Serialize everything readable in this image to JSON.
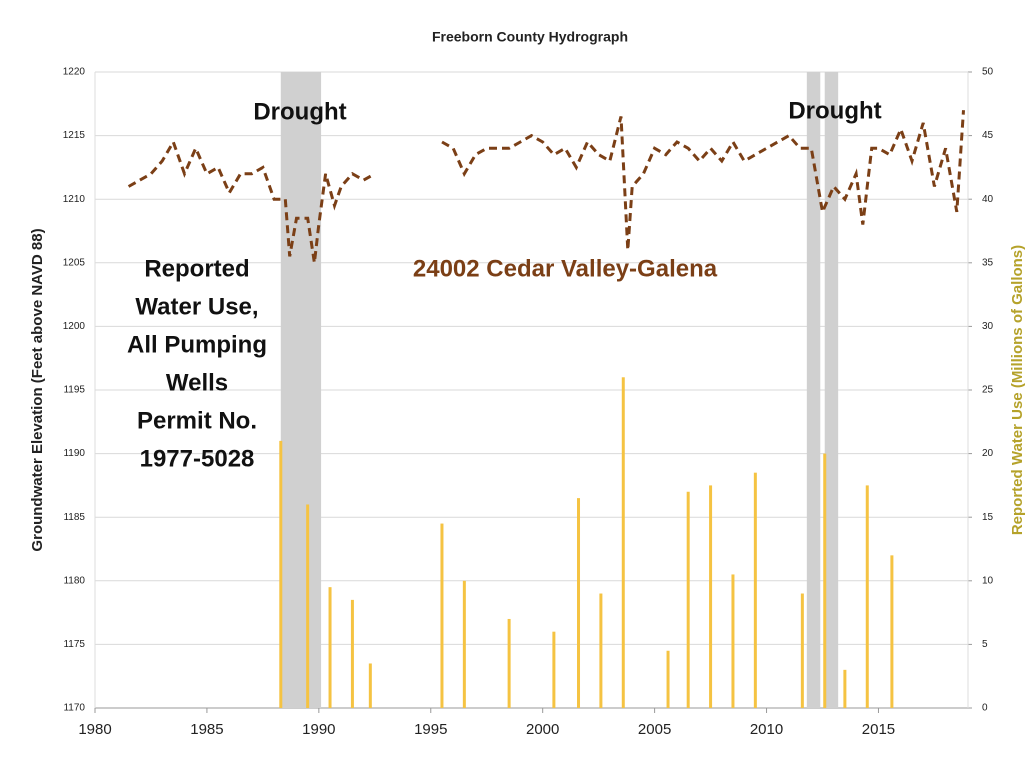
{
  "chart_data": {
    "type": "combo",
    "title": "Freeborn County Hydrograph",
    "ylabel": "Groundwater Elevation (Feet above NAVD 88)",
    "y2label": "Reported Water Use (Millions of Gallons)",
    "xlim": [
      1980,
      2019
    ],
    "xticks": [
      1980,
      1985,
      1990,
      1995,
      2000,
      2005,
      2010,
      2015
    ],
    "ylim": [
      1170,
      1220
    ],
    "yticks": [
      1170,
      1175,
      1180,
      1185,
      1190,
      1195,
      1200,
      1205,
      1210,
      1215,
      1220
    ],
    "y2lim": [
      0,
      50
    ],
    "y2ticks": [
      0,
      5,
      10,
      15,
      20,
      25,
      30,
      35,
      40,
      45,
      50
    ],
    "grid": true,
    "y2color": "#b5a22a",
    "shade_color": "#d0d0d0",
    "shaded_regions": [
      [
        1988.3,
        1990.1
      ],
      [
        2011.8,
        2012.4
      ],
      [
        2012.6,
        2013.2
      ]
    ],
    "annotations": [
      {
        "text": "Drought",
        "color": "#111111"
      },
      {
        "text": "Drought",
        "color": "#111111"
      },
      {
        "text": "24002 Cedar Valley-Galena",
        "color": "#7b3f16"
      },
      {
        "lines": [
          "Reported",
          "Water Use,",
          "All Pumping",
          "Wells",
          "Permit No.",
          "1977-5028"
        ],
        "color": "#111111"
      }
    ],
    "series": [
      {
        "type": "line",
        "color": "#7b3f16",
        "x": [
          1981.5,
          1982.5,
          1983,
          1983.5,
          1984,
          1984.5,
          1985,
          1985.5,
          1986,
          1986.5,
          1987,
          1987.5,
          1988,
          1988.5,
          1988.7,
          1989,
          1989.5,
          1989.8,
          1990,
          1990.3,
          1990.7,
          1991,
          1991.5,
          1992,
          1992.5,
          1994,
          1995.5,
          1996,
          1996.5,
          1997,
          1997.5,
          1998,
          1998.5,
          1999,
          1999.5,
          2000,
          2000.5,
          2001,
          2001.5,
          2002,
          2002.5,
          2003,
          2003.5,
          2003.8,
          2004,
          2004.5,
          2005,
          2005.5,
          2006,
          2006.5,
          2007,
          2007.5,
          2008,
          2008.5,
          2009,
          2009.5,
          2010,
          2010.5,
          2011,
          2011.5,
          2012,
          2012.5,
          2013,
          2013.5,
          2014,
          2014.3,
          2014.7,
          2015,
          2015.5,
          2016,
          2016.5,
          2017,
          2017.5,
          2018,
          2018.5,
          2018.8
        ],
        "values": [
          1211,
          1212,
          1213,
          1214.5,
          1212,
          1214,
          1212,
          1212.5,
          1210.5,
          1212,
          1212,
          1212.5,
          1210,
          1210,
          1205.5,
          1208.5,
          1208.5,
          1205,
          1208,
          1212,
          1209.5,
          1211,
          1212,
          1211.5,
          1212,
          null,
          1214.5,
          1214,
          1212,
          1213.5,
          1214,
          1214,
          1214,
          1214.5,
          1215,
          1214.5,
          1213.5,
          1214,
          1212.5,
          1214.5,
          1213.5,
          1213,
          1216.5,
          1206,
          1211,
          1212,
          1214,
          1213.5,
          1214.5,
          1214,
          1213,
          1214,
          1213,
          1214.5,
          1213,
          1213.5,
          1214,
          1214.5,
          1215,
          1214,
          1214,
          1209,
          1211,
          1210,
          1212,
          1208,
          1214,
          1214,
          1213.5,
          1215.5,
          1213,
          1216,
          1211,
          1214,
          1209,
          1217
        ]
      },
      {
        "type": "bar",
        "axis": "y2",
        "color": "#f5c342",
        "x": [
          1988.3,
          1989.5,
          1990.5,
          1991.5,
          1992.3,
          1995.5,
          1996.5,
          1998.5,
          2000.5,
          2001.6,
          2002.6,
          2003.6,
          2005.6,
          2006.5,
          2007.5,
          2008.5,
          2009.5,
          2011.6,
          2012.6,
          2013.5,
          2014.5,
          2015.6
        ],
        "values": [
          21,
          16,
          9.5,
          8.5,
          3.5,
          14.5,
          10,
          7,
          6,
          16.5,
          9,
          26,
          4.5,
          17,
          17.5,
          10.5,
          18.5,
          9,
          20,
          3,
          17.5,
          12
        ]
      }
    ]
  }
}
